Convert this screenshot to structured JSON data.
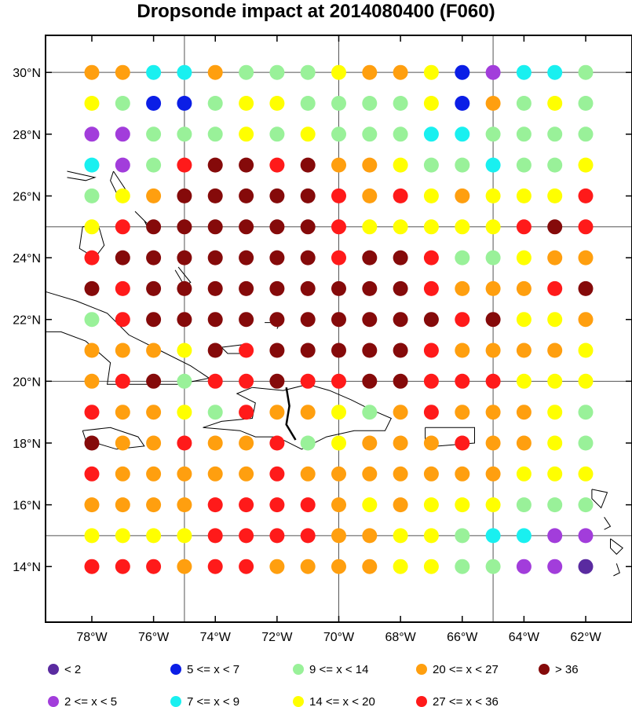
{
  "title": "Dropsonde impact at 2014080400 (F060)",
  "map": {
    "lon_range": [
      -79.5,
      -60.5
    ],
    "lat_range": [
      12.2,
      31.2
    ],
    "lon_ticks": [
      {
        "value": -78,
        "label": "78°W"
      },
      {
        "value": -76,
        "label": "76°W"
      },
      {
        "value": -74,
        "label": "74°W"
      },
      {
        "value": -72,
        "label": "72°W"
      },
      {
        "value": -70,
        "label": "70°W"
      },
      {
        "value": -68,
        "label": "68°W"
      },
      {
        "value": -66,
        "label": "66°W"
      },
      {
        "value": -64,
        "label": "64°W"
      },
      {
        "value": -62,
        "label": "62°W"
      }
    ],
    "lat_ticks": [
      {
        "value": 30,
        "label": "30°N"
      },
      {
        "value": 28,
        "label": "28°N"
      },
      {
        "value": 26,
        "label": "26°N"
      },
      {
        "value": 24,
        "label": "24°N"
      },
      {
        "value": 22,
        "label": "22°N"
      },
      {
        "value": 20,
        "label": "20°N"
      },
      {
        "value": 18,
        "label": "18°N"
      },
      {
        "value": 16,
        "label": "16°N"
      },
      {
        "value": 14,
        "label": "14°N"
      }
    ],
    "grid_lons": [
      -75,
      -70,
      -65
    ],
    "grid_lats": [
      15,
      20,
      25,
      30
    ],
    "colors": {
      "c0": "#5a2ba0",
      "c1": "#a23ddb",
      "c2": "#0b1ee6",
      "c3": "#19f0f0",
      "c4": "#99f199",
      "c5": "#ffff00",
      "c6": "#ff9f0f",
      "c7": "#ff1a1a",
      "c8": "#850a0a"
    }
  },
  "legend": [
    {
      "label": "<  2",
      "color": "#5a2ba0"
    },
    {
      "label": "5 <= x <  7",
      "color": "#0b1ee6"
    },
    {
      "label": "9 <= x < 14",
      "color": "#99f199"
    },
    {
      "label": "20 <= x < 27",
      "color": "#ff9f0f"
    },
    {
      "label": "> 36",
      "color": "#850a0a"
    },
    {
      "label": "2 <= x <  5",
      "color": "#a23ddb"
    },
    {
      "label": "7 <= x <  9",
      "color": "#19f0f0"
    },
    {
      "label": "14 <= x < 20",
      "color": "#ffff00"
    },
    {
      "label": "27 <= x < 36",
      "color": "#ff1a1a"
    }
  ],
  "chart_data": {
    "type": "scatter",
    "title": "Dropsonde impact at 2014080400 (F060)",
    "lons": [
      -78,
      -77,
      -76,
      -75,
      -74,
      -73,
      -72,
      -71,
      -70,
      -69,
      -68,
      -67,
      -66,
      -65,
      -64,
      -63,
      -62
    ],
    "lats": [
      30,
      29,
      28,
      27,
      26,
      25,
      24,
      23,
      22,
      21,
      20,
      19,
      18,
      17,
      16,
      15,
      14
    ],
    "value_classes": [
      "<  2",
      "2 <= x <  5",
      "5 <= x <  7",
      "7 <= x <  9",
      "9 <= x < 14",
      "14 <= x < 20",
      "20 <= x < 27",
      "27 <= x < 36",
      "> 36"
    ],
    "rows": [
      "66336444566521334",
      "54224554444526454",
      "11444545444334444",
      "31478878665443445",
      "45688888767565557",
      "57888888755555787",
      "78888888788744566",
      "87888888888766678",
      "47888888888878556",
      "66658788888766665",
      "67847787788777555",
      "76654766546766654",
      "86676674566676654",
      "76666676666666555",
      "66667777656555444",
      "55557777665543311",
      "77767766665544110"
    ]
  }
}
